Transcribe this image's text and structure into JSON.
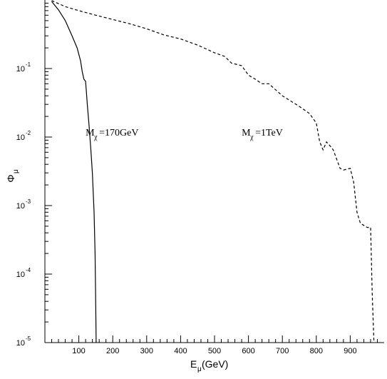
{
  "chart_data": {
    "type": "line",
    "title": "",
    "xlabel": {
      "base": "E",
      "sub": "μ",
      "rest": "(GeV)"
    },
    "ylabel": {
      "base": "Φ",
      "sub": "μ"
    },
    "xlim": [
      0,
      1000
    ],
    "ylim": [
      1e-05,
      1
    ],
    "yscale": "log",
    "grid": false,
    "legend": "none",
    "x_ticks": [
      100,
      200,
      300,
      400,
      500,
      600,
      700,
      800,
      900
    ],
    "x_tick_labels": [
      "100",
      "200",
      "300",
      "400",
      "500",
      "600",
      "700",
      "800",
      "900"
    ],
    "y_ticks": [
      {
        "value": 0.1,
        "base": "10",
        "exp": "-1"
      },
      {
        "value": 0.01,
        "base": "10",
        "exp": "-2"
      },
      {
        "value": 0.001,
        "base": "10",
        "exp": "-3"
      },
      {
        "value": 0.0001,
        "base": "10",
        "exp": "-4"
      },
      {
        "value": 1e-05,
        "base": "10",
        "exp": "-5"
      }
    ],
    "series": [
      {
        "style": "solid",
        "x": [
          20,
          40,
          60,
          80,
          95,
          105,
          110,
          115,
          120,
          125,
          130,
          135,
          140,
          145,
          148,
          150,
          151
        ],
        "y": [
          0.95,
          0.72,
          0.5,
          0.3,
          0.2,
          0.13,
          0.09,
          0.07,
          0.065,
          0.03,
          0.015,
          0.007,
          0.003,
          0.0008,
          0.0002,
          3e-05,
          1e-05
        ]
      },
      {
        "style": "dashed",
        "x": [
          20,
          60,
          100,
          150,
          200,
          250,
          300,
          350,
          400,
          450,
          500,
          530,
          550,
          580,
          600,
          620,
          640,
          660,
          700,
          750,
          780,
          800,
          810,
          820,
          830,
          840,
          850,
          870,
          880,
          900,
          910,
          920,
          930,
          950,
          960,
          965,
          970
        ],
        "y": [
          0.98,
          0.8,
          0.7,
          0.6,
          0.52,
          0.45,
          0.38,
          0.31,
          0.27,
          0.22,
          0.17,
          0.15,
          0.12,
          0.11,
          0.08,
          0.07,
          0.06,
          0.06,
          0.04,
          0.028,
          0.022,
          0.016,
          0.0085,
          0.0065,
          0.0085,
          0.0075,
          0.0065,
          0.0035,
          0.0033,
          0.0035,
          0.0022,
          0.0008,
          0.00055,
          0.00048,
          0.00048,
          5e-05,
          1e-05
        ]
      }
    ],
    "annotations": [
      {
        "base": "M",
        "sub": "χ",
        "rest": "=170GeV",
        "x": 120,
        "y": 0.0105
      },
      {
        "base": "M",
        "sub": "χ",
        "rest": "=1TeV",
        "x": 580,
        "y": 0.0105
      }
    ]
  }
}
